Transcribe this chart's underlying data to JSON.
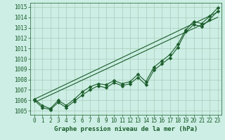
{
  "xlabel": "Graphe pression niveau de la mer (hPa)",
  "background_color": "#cceee4",
  "grid_color": "#aaccbb",
  "line_color": "#1a5c2a",
  "xlim_min": -0.5,
  "xlim_max": 23.5,
  "ylim_min": 1004.6,
  "ylim_max": 1015.4,
  "yticks": [
    1005,
    1006,
    1007,
    1008,
    1009,
    1010,
    1011,
    1012,
    1013,
    1014,
    1015
  ],
  "xticks": [
    0,
    1,
    2,
    3,
    4,
    5,
    6,
    7,
    8,
    9,
    10,
    11,
    12,
    13,
    14,
    15,
    16,
    17,
    18,
    19,
    20,
    21,
    22,
    23
  ],
  "pressure_data1": [
    1006.0,
    1005.3,
    1005.1,
    1005.8,
    1005.3,
    1005.9,
    1006.5,
    1007.0,
    1007.4,
    1007.2,
    1007.7,
    1007.4,
    1007.6,
    1008.2,
    1007.5,
    1008.9,
    1009.5,
    1010.1,
    1011.1,
    1012.6,
    1013.3,
    1013.1,
    1013.8,
    1014.6
  ],
  "pressure_data2": [
    1006.1,
    1005.5,
    1005.2,
    1006.0,
    1005.5,
    1006.1,
    1006.8,
    1007.3,
    1007.6,
    1007.5,
    1007.9,
    1007.6,
    1007.8,
    1008.5,
    1007.8,
    1009.2,
    1009.8,
    1010.4,
    1011.4,
    1012.8,
    1013.6,
    1013.4,
    1014.1,
    1014.9
  ],
  "trend1_x": [
    0,
    23
  ],
  "trend1_y": [
    1005.8,
    1014.0
  ],
  "trend2_x": [
    0,
    23
  ],
  "trend2_y": [
    1006.1,
    1014.5
  ],
  "xlabel_fontsize": 6.5,
  "tick_fontsize": 5.5,
  "line_width": 0.8,
  "marker_size": 2.5,
  "marker": "D"
}
